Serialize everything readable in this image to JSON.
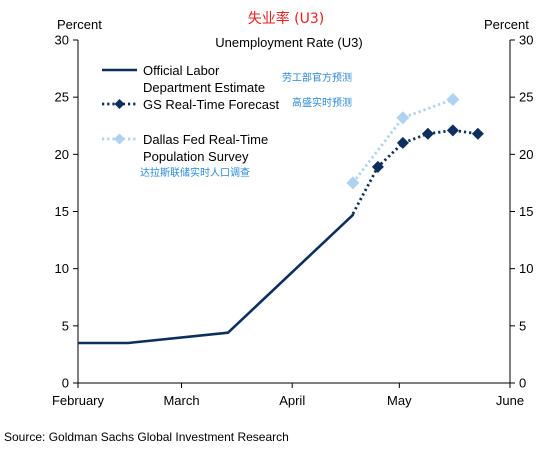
{
  "chart_data": {
    "type": "line",
    "title": "失业率 (U3)",
    "subtitle": "Unemployment Rate (U3)",
    "y_unit_left": "Percent",
    "y_unit_right": "Percent",
    "ylim": [
      0,
      30
    ],
    "yticks": [
      0,
      5,
      10,
      15,
      20,
      25,
      30
    ],
    "xlim": [
      "2020-02-01",
      "2020-06-01"
    ],
    "xticks": [
      {
        "label": "February",
        "date": "2020-02-01"
      },
      {
        "label": "March",
        "date": "2020-03-01"
      },
      {
        "label": "April",
        "date": "2020-04-01"
      },
      {
        "label": "May",
        "date": "2020-05-01"
      },
      {
        "label": "June",
        "date": "2020-06-01"
      }
    ],
    "legend_position": "top-left",
    "series": [
      {
        "name_lines": [
          "Official Labor",
          "Department Estimate"
        ],
        "annotation": "劳工部官方预测",
        "color": "#0d2f5e",
        "style": "solid",
        "points": [
          {
            "x": "2020-02-01",
            "y": 3.5
          },
          {
            "x": "2020-02-15",
            "y": 3.5
          },
          {
            "x": "2020-03-14",
            "y": 4.4
          },
          {
            "x": "2020-04-18",
            "y": 14.7
          },
          {
            "x": "2020-04-18",
            "y": 14.8
          }
        ]
      },
      {
        "name_lines": [
          "GS Real-Time Forecast"
        ],
        "annotation": "高盛实时预测",
        "color": "#0d2f5e",
        "style": "dotted",
        "points": [
          {
            "x": "2020-04-18",
            "y": 14.8
          },
          {
            "x": "2020-04-25",
            "y": 18.9
          },
          {
            "x": "2020-05-02",
            "y": 21.0
          },
          {
            "x": "2020-05-09",
            "y": 21.8
          },
          {
            "x": "2020-05-16",
            "y": 22.1
          },
          {
            "x": "2020-05-23",
            "y": 21.8
          }
        ],
        "markers": [
          {
            "x": "2020-04-25",
            "y": 18.9
          },
          {
            "x": "2020-05-02",
            "y": 21.0
          },
          {
            "x": "2020-05-09",
            "y": 21.8
          },
          {
            "x": "2020-05-16",
            "y": 22.1
          },
          {
            "x": "2020-05-23",
            "y": 21.8
          }
        ]
      },
      {
        "name_lines": [
          "Dallas Fed Real-Time",
          "Population Survey"
        ],
        "annotation": "达拉斯联储实时人口调查",
        "color": "#aed2ef",
        "style": "dotted",
        "points": [
          {
            "x": "2020-04-18",
            "y": 17.5
          },
          {
            "x": "2020-05-02",
            "y": 23.2
          },
          {
            "x": "2020-05-16",
            "y": 24.8
          }
        ],
        "markers": [
          {
            "x": "2020-04-18",
            "y": 17.5
          },
          {
            "x": "2020-05-02",
            "y": 23.2
          },
          {
            "x": "2020-05-16",
            "y": 24.8
          }
        ]
      }
    ],
    "source": "Source: Goldman Sachs Global Investment Research"
  }
}
